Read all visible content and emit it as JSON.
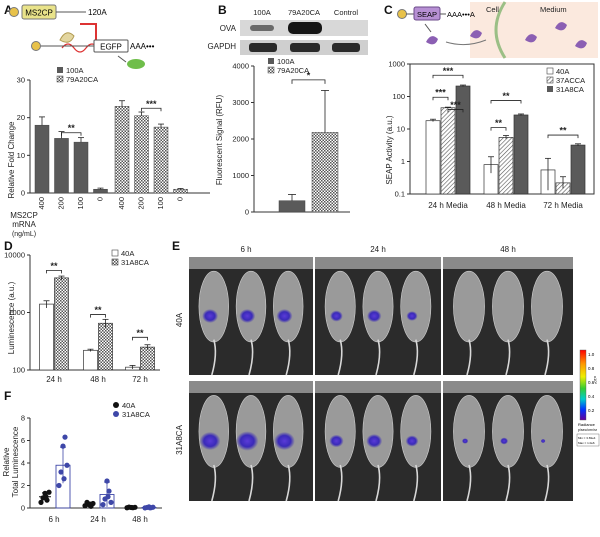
{
  "panels": {
    "A": {
      "label": "A",
      "diagram": {
        "protein_label": "MS2CP",
        "tail_label": "120A",
        "reporter_label": "EGFP",
        "polya_label": "AAA•••"
      },
      "legend": [
        "100A",
        "79A20CA"
      ],
      "ylabel": "Relative Fold Change",
      "xlabel_line1": "MS2CP",
      "xlabel_line2": "mRNA",
      "xlabel_line3": "(ng/mL)",
      "significance": [
        "**",
        "***"
      ]
    },
    "B": {
      "label": "B",
      "blot": {
        "lanes": [
          "100A",
          "79A20CA",
          "Control"
        ],
        "rows": [
          "OVA",
          "GAPDH"
        ]
      },
      "legend": [
        "100A",
        "79A20CA"
      ],
      "ylabel": "Fluorescent Signal (RFU)",
      "significance": [
        "*"
      ]
    },
    "C": {
      "label": "C",
      "diagram": {
        "protein_label": "SEAP",
        "polya_label": "AAA•••A",
        "cell_label": "Cell",
        "medium_label": "Medium"
      },
      "legend": [
        "40A",
        "37ACCA",
        "31A8CA"
      ],
      "ylabel": "SEAP Activity (a.u.)",
      "significance": [
        "***",
        "***",
        "***",
        "**",
        "**",
        "**"
      ]
    },
    "D": {
      "label": "D",
      "legend": [
        "40A",
        "31A8CA"
      ],
      "ylabel": "Luminescence (a.u.)",
      "significance": [
        "**",
        "**",
        "**"
      ]
    },
    "E": {
      "label": "E",
      "columns": [
        "6 h",
        "24 h",
        "48 h"
      ],
      "rows": [
        "40A",
        "31A8CA"
      ],
      "colorbar_ticks": [
        "1.0",
        "0.8",
        "0.6",
        "0.4",
        "0.2"
      ],
      "colorbar_unit": "x10⁶",
      "colorbar_title": "Radiance",
      "colorbar_sub": "p/sec/cm²/sr",
      "colorbar_min_label": "Min = 3.69e4",
      "colorbar_max_label": "Max = 1.0e6"
    },
    "F": {
      "label": "F",
      "legend": [
        "40A",
        "31A8CA"
      ],
      "ylabel_line1": "Relative",
      "ylabel_line2": "Total Luminescence"
    }
  },
  "chart_data": [
    {
      "id": "A",
      "type": "bar",
      "title": "",
      "groups": [
        "100A",
        "79A20CA"
      ],
      "categories": [
        "400",
        "200",
        "100",
        "0"
      ],
      "series": [
        {
          "name": "100A",
          "values": [
            18,
            14.5,
            13.5,
            1
          ],
          "errors": [
            2.2,
            1.8,
            1.2,
            0.3
          ]
        },
        {
          "name": "79A20CA",
          "values": [
            23,
            20.5,
            17.5,
            1
          ],
          "errors": [
            1.5,
            1.0,
            0.8,
            0.2
          ]
        }
      ],
      "ylabel": "Relative Fold Change",
      "xlabel": "MS2CP mRNA (ng/mL)",
      "ylim": [
        0,
        30
      ],
      "yticks": [
        0,
        10,
        20,
        30
      ]
    },
    {
      "id": "B",
      "type": "bar",
      "title": "",
      "categories": [
        "100A",
        "79A20CA"
      ],
      "values": [
        310,
        2180
      ],
      "errors": [
        170,
        1150
      ],
      "ylabel": "Fluorescent Signal (RFU)",
      "ylim": [
        0,
        4000
      ],
      "yticks": [
        0,
        1000,
        2000,
        3000,
        4000
      ]
    },
    {
      "id": "C",
      "type": "bar",
      "title": "",
      "yscale": "log",
      "categories": [
        "24 h Media",
        "48 h Media",
        "72 h Media"
      ],
      "series": [
        {
          "name": "40A",
          "values": [
            18,
            0.8,
            0.55
          ],
          "errors": [
            2,
            0.6,
            0.7
          ]
        },
        {
          "name": "37ACCA",
          "values": [
            45,
            5.5,
            0.22
          ],
          "errors": [
            2,
            0.8,
            0.12
          ]
        },
        {
          "name": "31A8CA",
          "values": [
            210,
            27,
            3.2
          ],
          "errors": [
            15,
            2,
            0.3
          ]
        }
      ],
      "ylabel": "SEAP Activity (a.u.)",
      "ylim": [
        0.1,
        1000
      ],
      "yticks": [
        0.1,
        1,
        10,
        100,
        1000
      ]
    },
    {
      "id": "D",
      "type": "bar",
      "title": "",
      "yscale": "log",
      "categories": [
        "24 h",
        "48 h",
        "72 h"
      ],
      "series": [
        {
          "name": "40A",
          "values": [
            1400,
            220,
            112
          ],
          "errors": [
            200,
            10,
            8
          ]
        },
        {
          "name": "31A8CA",
          "values": [
            4000,
            650,
            250
          ],
          "errors": [
            300,
            110,
            25
          ]
        }
      ],
      "ylabel": "Luminescence (a.u.)",
      "ylim": [
        100,
        10000
      ],
      "yticks": [
        100,
        1000,
        10000
      ]
    },
    {
      "id": "F",
      "type": "scatter",
      "title": "",
      "categories": [
        "6 h",
        "24 h",
        "48 h"
      ],
      "series": [
        {
          "name": "40A",
          "means": [
            1,
            0.32,
            0.05
          ],
          "sd": [
            0.35,
            0.15,
            0.03
          ],
          "points": [
            [
              0.5,
              0.9,
              1.3,
              0.7,
              1.4,
              1.0
            ],
            [
              0.2,
              0.5,
              0.3,
              0.15,
              0.4,
              0.35
            ],
            [
              0.02,
              0.08,
              0.05,
              0.03,
              0.06,
              0.04
            ]
          ]
        },
        {
          "name": "31A8CA",
          "means": [
            3.8,
            1.2,
            0.05
          ],
          "sd": [
            1.6,
            1.1,
            0.05
          ],
          "points": [
            [
              2.0,
              3.2,
              5.5,
              6.3,
              3.8,
              2.6
            ],
            [
              0.3,
              0.8,
              2.4,
              1.5,
              0.5,
              1.0
            ],
            [
              0.01,
              0.05,
              0.1,
              0.03,
              0.07,
              0.02
            ]
          ]
        }
      ],
      "ylim": [
        0,
        8
      ],
      "yticks": [
        0,
        2,
        4,
        6,
        8
      ]
    }
  ],
  "colors": {
    "solid": "#5a5a5a",
    "light": "#bdbdbd",
    "white": "#ffffff",
    "f_black": "#111111",
    "f_blue": "#3e47a8",
    "egfp": "#6fbe4a",
    "seap": "#8b5fb3",
    "ms2": "#e9e38a",
    "medium_bg": "#fbe9de"
  },
  "colorbar": [
    "#ff0000",
    "#ff8800",
    "#ffee00",
    "#33cc33",
    "#00cccc",
    "#0033ff",
    "#6600aa"
  ]
}
